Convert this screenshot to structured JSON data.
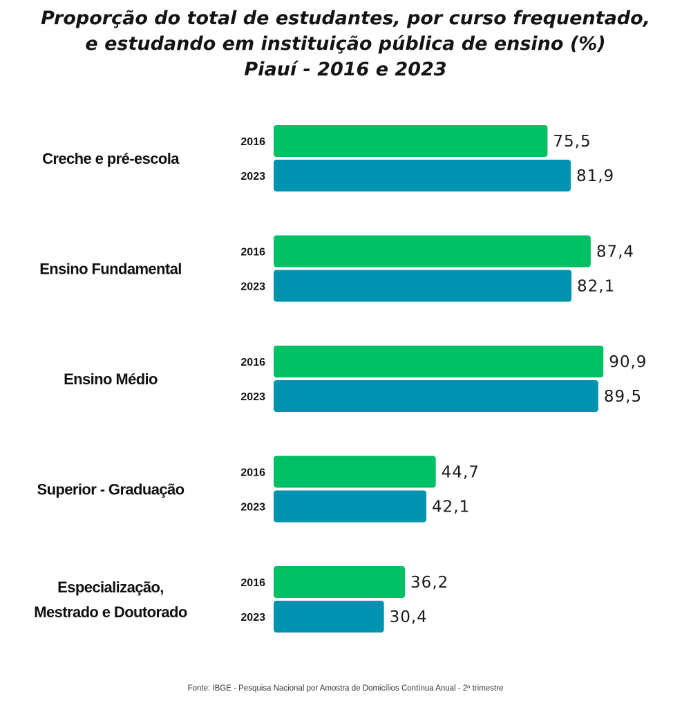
{
  "chart_data": {
    "type": "bar",
    "orientation": "horizontal",
    "title_lines": [
      "Proporção do total de estudantes, por curso frequentado,",
      "e estudando em instituição pública de ensino (%)",
      "Piauí - 2016 e 2023"
    ],
    "categories": [
      [
        "Creche e pré-escola"
      ],
      [
        "Ensino Fundamental"
      ],
      [
        "Ensino Médio"
      ],
      [
        "Superior - Graduação"
      ],
      [
        "Especialização,",
        "Mestrado e Doutorado"
      ]
    ],
    "series": [
      {
        "name": "2016",
        "color": "#00c065",
        "values": [
          75.5,
          87.4,
          90.9,
          44.7,
          36.2
        ],
        "labels": [
          "75,5",
          "87,4",
          "90,9",
          "44,7",
          "36,2"
        ]
      },
      {
        "name": "2023",
        "color": "#0093b0",
        "values": [
          81.9,
          82.1,
          89.5,
          42.1,
          30.4
        ],
        "labels": [
          "81,9",
          "82,1",
          "89,5",
          "42,1",
          "30,4"
        ]
      }
    ],
    "xlim": [
      0,
      100
    ],
    "grid": false,
    "legend": "none"
  },
  "source": "Fonte: IBGE - Pesquisa Nacional por Amostra de Domicílios Contínua Anual - 2º trimestre"
}
